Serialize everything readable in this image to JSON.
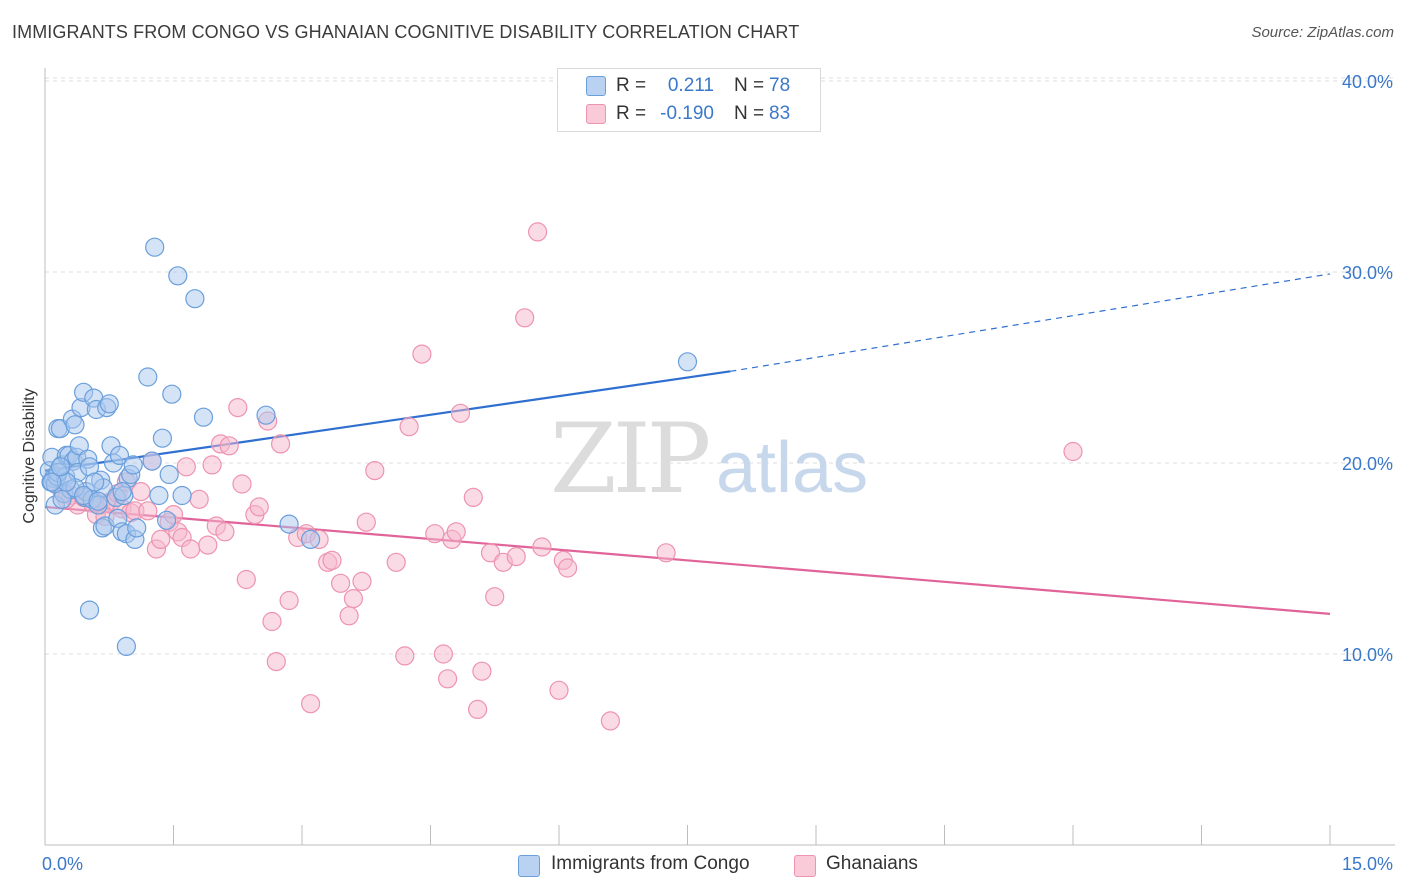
{
  "title": "IMMIGRANTS FROM CONGO VS GHANAIAN COGNITIVE DISABILITY CORRELATION CHART",
  "source": "Source: ZipAtlas.com",
  "watermark": {
    "zip": "ZIP",
    "atlas": "atlas"
  },
  "colors": {
    "blue_fill": "#a9c8ee",
    "blue_stroke": "#6a9fdc",
    "blue_line": "#2f6fd0",
    "pink_fill": "#f5b8cb",
    "pink_stroke": "#ee93b0",
    "pink_line": "#e0649a",
    "grid": "#dcdcdc",
    "tick_text": "#3a78c9"
  },
  "legend_top": {
    "rows": [
      {
        "r_label": "R =",
        "r_value": "0.211",
        "n_label": "N =",
        "n_value": "78"
      },
      {
        "r_label": "R =",
        "r_value": "-0.190",
        "n_label": "N =",
        "n_value": "83"
      }
    ]
  },
  "chart_data": {
    "type": "scatter",
    "title": "IMMIGRANTS FROM CONGO VS GHANAIAN COGNITIVE DISABILITY CORRELATION CHART",
    "xlabel": "",
    "ylabel": "Cognitive Disability",
    "xlim": [
      0,
      15
    ],
    "ylim": [
      0,
      42
    ],
    "x_tick_labels": [
      "0.0%",
      "15.0%"
    ],
    "y_tick_labels": [
      "10.0%",
      "20.0%",
      "30.0%",
      "40.0%"
    ],
    "y_ticks": [
      10,
      20,
      30,
      40
    ],
    "grid": true,
    "legend_position": "bottom",
    "series": [
      {
        "name": "Immigrants from Congo",
        "color": "blue",
        "trend": {
          "x": [
            0.0,
            8.0
          ],
          "y": [
            19.6,
            24.8
          ],
          "dashed_to": {
            "x": 15.0,
            "y": 29.9
          }
        },
        "points": [
          [
            0.05,
            19.6
          ],
          [
            0.07,
            19.0
          ],
          [
            0.08,
            20.3
          ],
          [
            0.1,
            19.2
          ],
          [
            0.12,
            17.8
          ],
          [
            0.12,
            18.9
          ],
          [
            0.14,
            19.3
          ],
          [
            0.15,
            21.8
          ],
          [
            0.18,
            21.8
          ],
          [
            0.2,
            19.9
          ],
          [
            0.22,
            18.4
          ],
          [
            0.24,
            19.3
          ],
          [
            0.25,
            20.4
          ],
          [
            0.28,
            20.4
          ],
          [
            0.3,
            18.6
          ],
          [
            0.32,
            22.3
          ],
          [
            0.33,
            20.1
          ],
          [
            0.35,
            22.0
          ],
          [
            0.37,
            20.3
          ],
          [
            0.38,
            19.5
          ],
          [
            0.4,
            20.9
          ],
          [
            0.42,
            22.9
          ],
          [
            0.45,
            23.7
          ],
          [
            0.47,
            18.2
          ],
          [
            0.48,
            18.5
          ],
          [
            0.5,
            20.2
          ],
          [
            0.52,
            19.8
          ],
          [
            0.55,
            18.1
          ],
          [
            0.57,
            23.4
          ],
          [
            0.6,
            22.8
          ],
          [
            0.62,
            17.8
          ],
          [
            0.65,
            19.1
          ],
          [
            0.67,
            16.6
          ],
          [
            0.68,
            18.7
          ],
          [
            0.7,
            16.7
          ],
          [
            0.72,
            22.9
          ],
          [
            0.75,
            23.1
          ],
          [
            0.77,
            20.9
          ],
          [
            0.8,
            20.0
          ],
          [
            0.83,
            18.2
          ],
          [
            0.85,
            17.1
          ],
          [
            0.87,
            20.4
          ],
          [
            0.9,
            16.4
          ],
          [
            0.92,
            18.3
          ],
          [
            0.95,
            16.3
          ],
          [
            0.97,
            19.2
          ],
          [
            1.0,
            19.4
          ],
          [
            1.03,
            19.9
          ],
          [
            1.05,
            16.0
          ],
          [
            1.07,
            16.6
          ],
          [
            1.2,
            24.5
          ],
          [
            1.25,
            20.1
          ],
          [
            1.28,
            31.3
          ],
          [
            1.33,
            18.3
          ],
          [
            1.37,
            21.3
          ],
          [
            1.42,
            17.0
          ],
          [
            1.45,
            19.4
          ],
          [
            1.48,
            23.6
          ],
          [
            1.55,
            29.8
          ],
          [
            1.6,
            18.3
          ],
          [
            1.75,
            28.6
          ],
          [
            1.85,
            22.4
          ],
          [
            2.58,
            22.5
          ],
          [
            2.85,
            16.8
          ],
          [
            3.1,
            16.0
          ],
          [
            0.2,
            18.1
          ],
          [
            0.35,
            18.7
          ],
          [
            0.58,
            19.0
          ],
          [
            0.15,
            19.5
          ],
          [
            0.25,
            19.0
          ],
          [
            0.45,
            18.3
          ],
          [
            0.62,
            18.0
          ],
          [
            0.08,
            19.0
          ],
          [
            0.18,
            19.8
          ],
          [
            0.52,
            12.3
          ],
          [
            0.95,
            10.4
          ],
          [
            7.5,
            25.3
          ],
          [
            0.9,
            18.5
          ]
        ]
      },
      {
        "name": "Ghanaians",
        "color": "pink",
        "trend": {
          "x": [
            0.0,
            15.0
          ],
          "y": [
            17.7,
            12.1
          ]
        },
        "points": [
          [
            0.12,
            18.9
          ],
          [
            0.2,
            18.5
          ],
          [
            0.3,
            18.3
          ],
          [
            0.38,
            17.8
          ],
          [
            0.45,
            18.2
          ],
          [
            0.55,
            17.9
          ],
          [
            0.6,
            17.3
          ],
          [
            0.65,
            17.8
          ],
          [
            0.72,
            17.9
          ],
          [
            0.78,
            18.0
          ],
          [
            0.85,
            18.4
          ],
          [
            0.9,
            17.6
          ],
          [
            0.95,
            19.0
          ],
          [
            1.0,
            17.4
          ],
          [
            1.05,
            17.5
          ],
          [
            1.12,
            18.5
          ],
          [
            1.2,
            17.5
          ],
          [
            1.25,
            20.1
          ],
          [
            1.3,
            15.5
          ],
          [
            1.35,
            16.0
          ],
          [
            1.45,
            16.9
          ],
          [
            1.5,
            17.3
          ],
          [
            1.55,
            16.4
          ],
          [
            1.6,
            16.1
          ],
          [
            1.65,
            19.8
          ],
          [
            1.7,
            15.5
          ],
          [
            1.8,
            18.1
          ],
          [
            1.9,
            15.7
          ],
          [
            1.95,
            19.9
          ],
          [
            2.0,
            16.7
          ],
          [
            2.05,
            21.0
          ],
          [
            2.1,
            16.4
          ],
          [
            2.15,
            20.9
          ],
          [
            2.25,
            22.9
          ],
          [
            2.3,
            18.9
          ],
          [
            2.35,
            13.9
          ],
          [
            2.45,
            17.3
          ],
          [
            2.5,
            17.7
          ],
          [
            2.6,
            22.2
          ],
          [
            2.65,
            11.7
          ],
          [
            2.7,
            9.6
          ],
          [
            2.75,
            21.0
          ],
          [
            2.85,
            12.8
          ],
          [
            2.95,
            16.1
          ],
          [
            3.05,
            16.3
          ],
          [
            3.1,
            7.4
          ],
          [
            3.2,
            16.0
          ],
          [
            3.3,
            14.8
          ],
          [
            3.35,
            14.9
          ],
          [
            3.45,
            13.7
          ],
          [
            3.55,
            12.0
          ],
          [
            3.6,
            12.9
          ],
          [
            3.7,
            13.8
          ],
          [
            3.75,
            16.9
          ],
          [
            3.85,
            19.6
          ],
          [
            4.1,
            14.8
          ],
          [
            4.2,
            9.9
          ],
          [
            4.25,
            21.9
          ],
          [
            4.4,
            25.7
          ],
          [
            4.55,
            16.3
          ],
          [
            4.65,
            10.0
          ],
          [
            4.7,
            8.7
          ],
          [
            4.75,
            16.0
          ],
          [
            4.8,
            16.4
          ],
          [
            4.85,
            22.6
          ],
          [
            5.0,
            18.2
          ],
          [
            5.05,
            7.1
          ],
          [
            5.1,
            9.1
          ],
          [
            5.2,
            15.3
          ],
          [
            5.25,
            13.0
          ],
          [
            5.35,
            14.8
          ],
          [
            5.5,
            15.1
          ],
          [
            5.6,
            27.6
          ],
          [
            5.75,
            32.1
          ],
          [
            5.8,
            15.6
          ],
          [
            6.0,
            8.1
          ],
          [
            6.05,
            14.9
          ],
          [
            6.1,
            14.5
          ],
          [
            6.6,
            6.5
          ],
          [
            7.25,
            15.3
          ],
          [
            12.0,
            20.6
          ],
          [
            0.25,
            18.1
          ],
          [
            0.7,
            17.2
          ]
        ]
      }
    ]
  },
  "legend_bottom": [
    {
      "label": "Immigrants from Congo",
      "color": "blue"
    },
    {
      "label": "Ghanaians",
      "color": "pink"
    }
  ]
}
